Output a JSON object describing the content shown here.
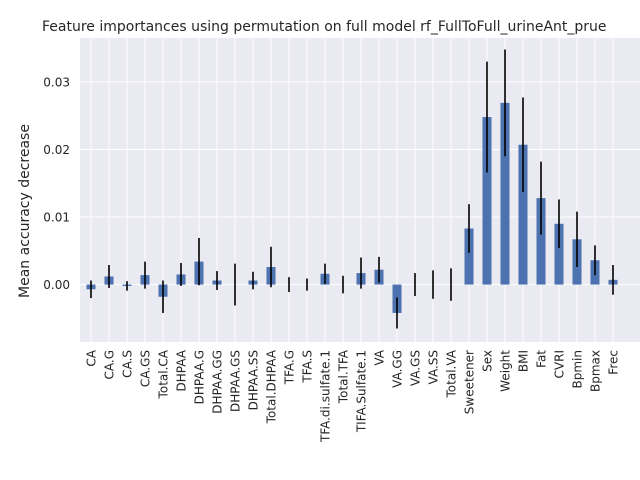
{
  "chart_data": {
    "type": "bar",
    "title": "Feature importances using permutation on full model rf_FullToFull_urineAnt_prue",
    "xlabel": "",
    "ylabel": "Mean accuracy decrease",
    "ylim": [
      -0.0085,
      0.0365
    ],
    "yticks": [
      0.0,
      0.01,
      0.02,
      0.03
    ],
    "ytick_labels": [
      "0.00",
      "0.01",
      "0.02",
      "0.03"
    ],
    "grid": true,
    "bar_color": "#4c72b0",
    "error_color": "#000000",
    "background_color": "#eaeaf2",
    "categories": [
      "CA",
      "CA.G",
      "CA.S",
      "CA.GS",
      "Total.CA",
      "DHPAA",
      "DHPAA.G",
      "DHPAA.GG",
      "DHPAA.GS",
      "DHPAA.SS",
      "Total.DHPAA",
      "TFA.G",
      "TFA.S",
      "TFA.di.sulfate.1",
      "Total.TFA",
      "TIFA.Sulfate.1",
      "VA",
      "VA.GG",
      "VA.GS",
      "VA.SS",
      "Total.VA",
      "Sweetener",
      "Sex",
      "Weight",
      "BMI",
      "Fat",
      "CVRI",
      "Bpmin",
      "Bpmax",
      "Frec"
    ],
    "values": [
      -0.0007,
      0.0012,
      -0.0002,
      0.0014,
      -0.0018,
      0.0015,
      0.0034,
      0.0006,
      0.0,
      0.0006,
      0.0026,
      0.0,
      0.0,
      0.0016,
      0.0,
      0.0017,
      0.0022,
      -0.0042,
      0.0,
      0.0,
      0.0,
      0.0083,
      0.0248,
      0.0269,
      0.0207,
      0.0128,
      0.009,
      0.0067,
      0.0036,
      0.0007
    ],
    "errors": [
      0.0013,
      0.0017,
      0.0007,
      0.002,
      0.0024,
      0.0017,
      0.0035,
      0.0014,
      0.0031,
      0.0013,
      0.003,
      0.0011,
      0.0009,
      0.0015,
      0.0013,
      0.0023,
      0.0019,
      0.0023,
      0.0017,
      0.0021,
      0.0024,
      0.0036,
      0.0082,
      0.0079,
      0.007,
      0.0054,
      0.0036,
      0.0041,
      0.0022,
      0.0022
    ]
  }
}
